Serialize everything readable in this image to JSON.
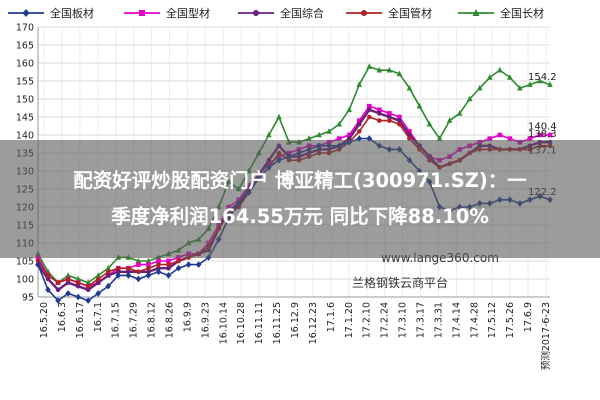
{
  "headline": {
    "line1": "配资好评炒股配资门户 博亚精工(300971.SZ)：一",
    "line2": "季度净利润164.55万元 同比下降88.10%"
  },
  "chart_data": {
    "type": "line",
    "title": "",
    "xlabel": "",
    "ylabel": "",
    "ylim": [
      95,
      170
    ],
    "yticks": [
      95,
      100,
      105,
      110,
      115,
      120,
      125,
      130,
      135,
      140,
      145,
      150,
      155,
      160,
      165,
      170
    ],
    "grid": true,
    "legend_position": "top",
    "tick_labels": [
      "16.5.20",
      "16.6.3",
      "16.6.17",
      "16.7.1",
      "16.7.15",
      "16.7.29",
      "16.8.12",
      "16.8.26",
      "16.9.9",
      "16.9.23",
      "16.10.14",
      "16.10.28",
      "16.11.11",
      "16.11.25",
      "16.12.9",
      "16.12.23",
      "17.1.6",
      "17.1.20",
      "17.2.10",
      "17.2.24",
      "17.3.10",
      "17.3.17",
      "17.3.31",
      "17.4.14",
      "17.4.28",
      "17.5.12",
      "17.5.26",
      "17.6.9",
      "预测2017-6-23"
    ],
    "end_labels": [
      "154.2",
      "140.4",
      "138.3",
      "137.1",
      "122.2"
    ],
    "watermark": [
      "www.lange360.com",
      "兰格钢铁云商平台"
    ],
    "colors": {
      "全国板材": "#1f3a93",
      "全国型材": "#e600c8",
      "全国综合": "#6a1f7a",
      "全国管材": "#b22222",
      "全国长材": "#2e8b2e"
    },
    "series": [
      {
        "name": "全国板材",
        "marker": "diamond",
        "values": [
          104,
          97,
          94,
          96,
          95,
          94,
          96,
          98,
          101,
          101,
          100,
          101,
          102,
          101,
          103,
          104,
          104,
          106,
          111,
          117,
          121,
          124,
          128,
          131,
          133,
          134,
          135,
          136,
          137,
          137,
          137,
          138,
          139,
          139,
          137,
          136,
          136,
          133,
          130,
          127,
          120,
          119,
          120,
          120,
          121,
          121,
          122,
          122,
          121,
          122,
          123,
          122
        ]
      },
      {
        "name": "全国型材",
        "marker": "square",
        "values": [
          106,
          101,
          99,
          100,
          99,
          98,
          99,
          101,
          103,
          103,
          104,
          104,
          105,
          105,
          106,
          107,
          107,
          110,
          115,
          120,
          122,
          126,
          129,
          132,
          134,
          135,
          136,
          137,
          137,
          138,
          139,
          140,
          144,
          148,
          147,
          146,
          145,
          141,
          137,
          134,
          133,
          134,
          136,
          137,
          138,
          139,
          140,
          139,
          138,
          139,
          140,
          140
        ]
      },
      {
        "name": "全国综合",
        "marker": "circle",
        "values": [
          104,
          100,
          97,
          99,
          98,
          97,
          99,
          101,
          102,
          102,
          102,
          102,
          103,
          103,
          105,
          106,
          107,
          108,
          114,
          119,
          121,
          125,
          129,
          133,
          137,
          134,
          134,
          135,
          136,
          136,
          137,
          139,
          143,
          147,
          146,
          145,
          144,
          140,
          137,
          134,
          131,
          132,
          133,
          135,
          137,
          137,
          136,
          136,
          136,
          137,
          138,
          138
        ]
      },
      {
        "name": "全国管材",
        "marker": "circle",
        "values": [
          105,
          101,
          99,
          100,
          99,
          98,
          100,
          102,
          103,
          103,
          102,
          103,
          104,
          104,
          105,
          106,
          107,
          109,
          114,
          118,
          120,
          124,
          128,
          131,
          135,
          133,
          133,
          134,
          135,
          135,
          136,
          138,
          141,
          145,
          144,
          144,
          143,
          139,
          136,
          133,
          131,
          132,
          133,
          135,
          136,
          136,
          136,
          136,
          136,
          136,
          137,
          137
        ]
      },
      {
        "name": "全国长材",
        "marker": "triangle",
        "values": [
          107,
          102,
          99,
          101,
          100,
          99,
          101,
          103,
          106,
          106,
          105,
          105,
          106,
          107,
          108,
          110,
          111,
          114,
          120,
          127,
          125,
          130,
          135,
          140,
          145,
          138,
          138,
          139,
          140,
          141,
          143,
          147,
          154,
          159,
          158,
          158,
          157,
          153,
          148,
          143,
          139,
          144,
          146,
          150,
          153,
          156,
          158,
          156,
          153,
          154,
          155,
          154
        ]
      }
    ]
  }
}
